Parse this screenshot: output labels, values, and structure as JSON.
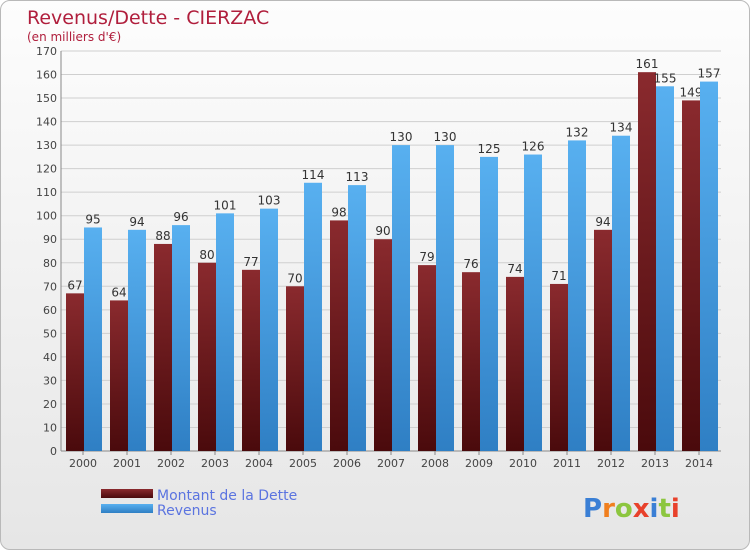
{
  "chart_data": {
    "type": "bar",
    "title": "Revenus/Dette - CIERZAC",
    "subtitle": "(en milliers d'€)",
    "categories": [
      "2000",
      "2001",
      "2002",
      "2003",
      "2004",
      "2005",
      "2006",
      "2007",
      "2008",
      "2009",
      "2010",
      "2011",
      "2012",
      "2013",
      "2014"
    ],
    "series": [
      {
        "name": "Montant de la Dette",
        "color": "#7a1e22",
        "values": [
          67,
          64,
          88,
          80,
          77,
          70,
          98,
          90,
          79,
          76,
          74,
          71,
          94,
          161,
          149
        ]
      },
      {
        "name": "Revenus",
        "color": "#4aa3e8",
        "values": [
          95,
          94,
          96,
          101,
          103,
          114,
          113,
          130,
          130,
          125,
          126,
          132,
          134,
          155,
          157
        ]
      }
    ],
    "ylim": [
      0,
      170
    ],
    "yticks": [
      0,
      10,
      20,
      30,
      40,
      50,
      60,
      70,
      80,
      90,
      100,
      110,
      120,
      130,
      140,
      150,
      160,
      170
    ],
    "grid": true,
    "legend_position": "bottom-left"
  },
  "logo": {
    "text": "Proxiti",
    "letters": [
      "P",
      "r",
      "o",
      "x",
      "i",
      "t",
      "i"
    ],
    "colors": [
      "#3a7fd5",
      "#f07f1e",
      "#8cc63f",
      "#e8412b",
      "#3a7fd5",
      "#8cc63f",
      "#e8412b"
    ]
  }
}
